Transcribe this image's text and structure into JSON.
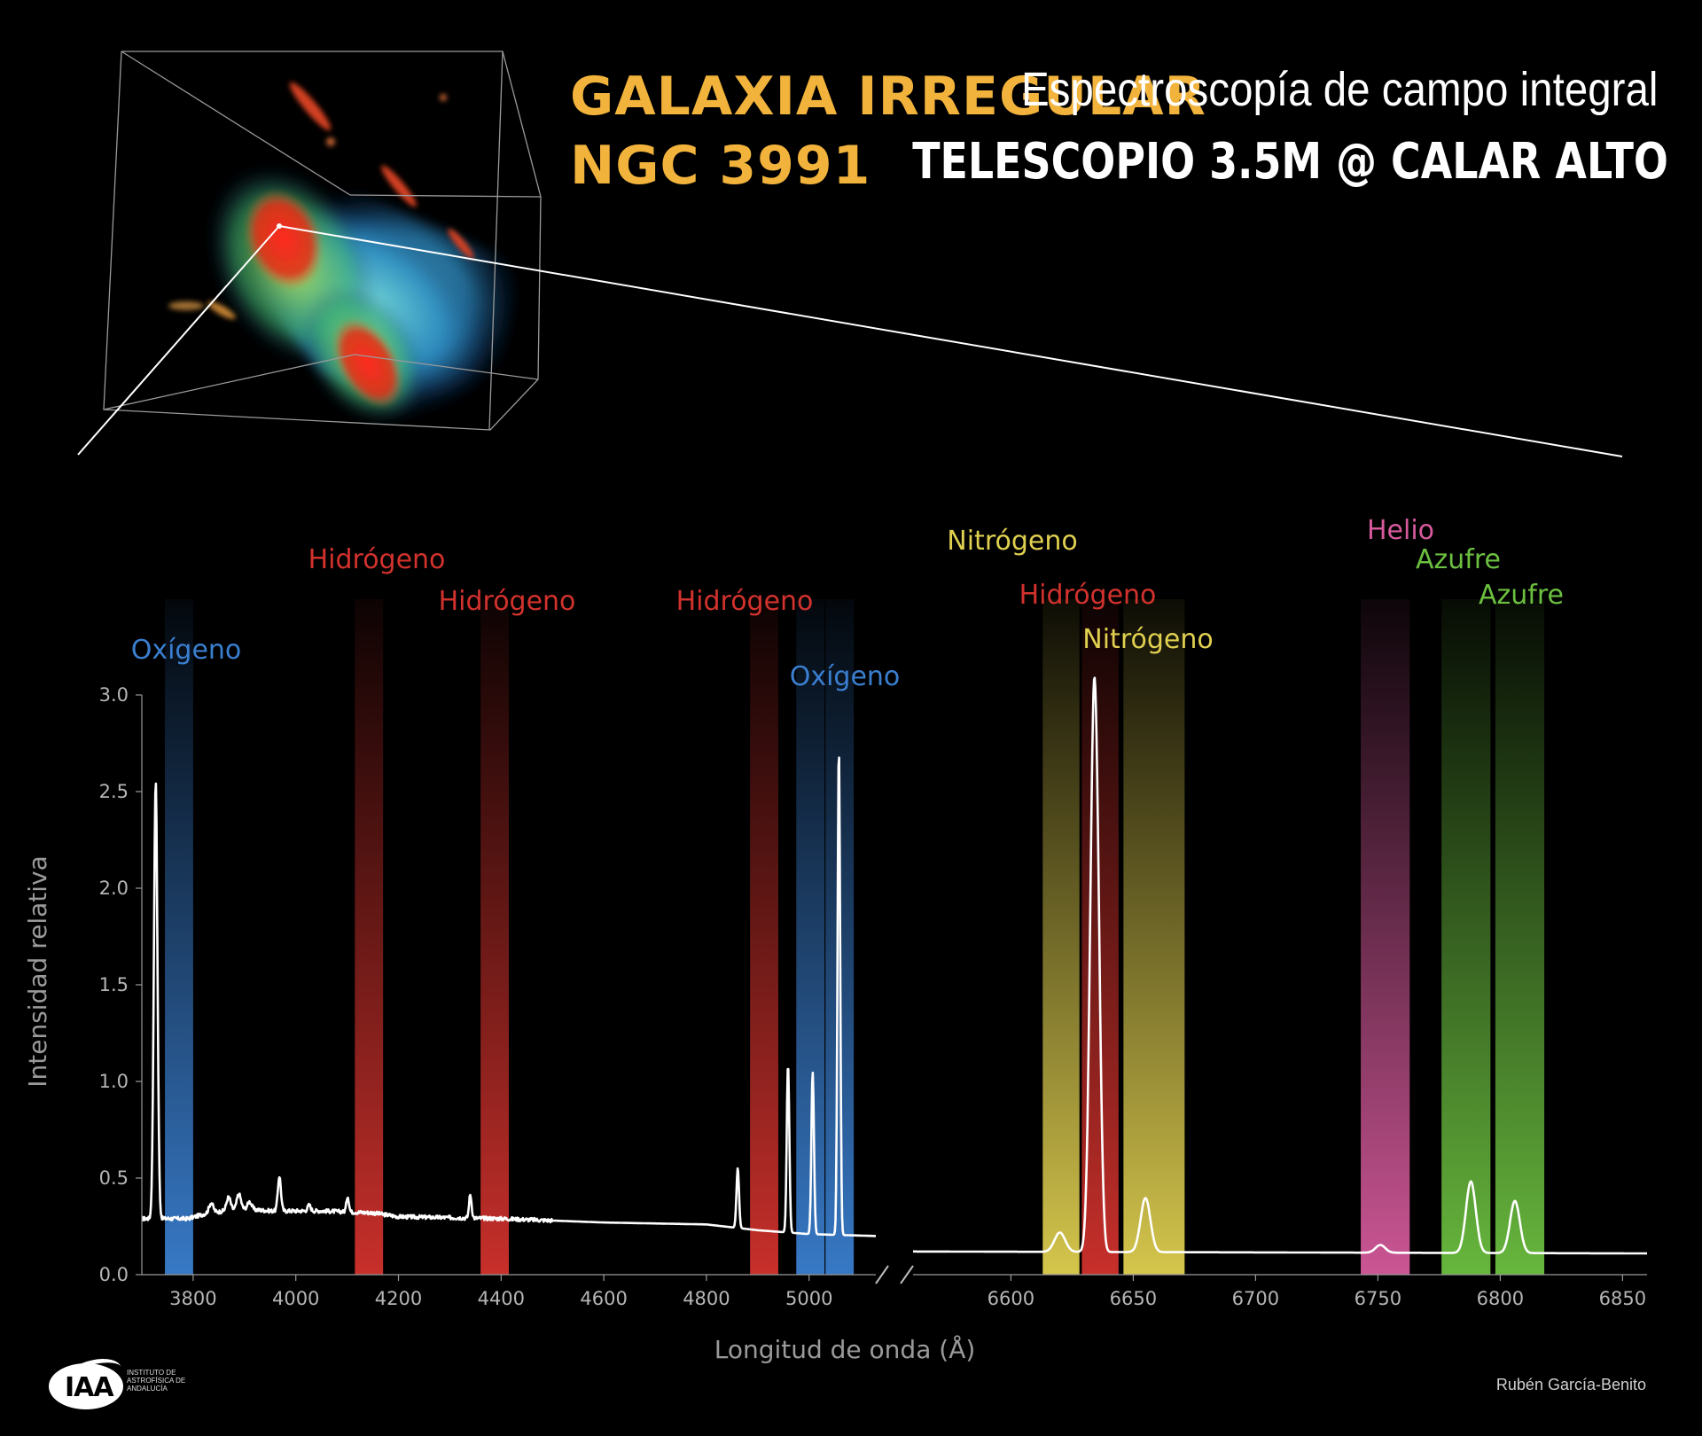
{
  "header": {
    "title_line1": "GALAXIA IRREGULAR",
    "title_line2": "NGC 3991",
    "subtitle_line1": "Espectroscopía de campo integral",
    "subtitle_line2": "TELESCOPIO 3.5M @ CALAR ALTO"
  },
  "credit": "Rubén García-Benito",
  "logo": {
    "text": "IAA",
    "institution": "INSTITUTO DE ASTROFÍSICA DE ANDALUCÍA"
  },
  "colors": {
    "title": "#f2b33c",
    "oxygen": "#3a7fd0",
    "hydrogen": "#d2322d",
    "nitrogen": "#e0d050",
    "helium": "#d65a9c",
    "sulfur": "#6cc040",
    "spectrum": "#ffffff"
  },
  "chart_data": {
    "type": "line",
    "xlabel": "Longitud de onda (Å)",
    "ylabel": "Intensidad relativa",
    "ylim": [
      0.0,
      3.0
    ],
    "yticks": [
      "0.0",
      "0.5",
      "1.0",
      "1.5",
      "2.0",
      "2.5",
      "3.0"
    ],
    "panels": [
      {
        "xlim": [
          3700,
          5130
        ],
        "xticks": [
          "3800",
          "4000",
          "4200",
          "4400",
          "4600",
          "4800",
          "5000"
        ],
        "bands": [
          {
            "element": "Oxígeno",
            "color": "oxygen",
            "x0": 3745,
            "x1": 3800
          },
          {
            "element": "Hidrógeno",
            "color": "hydrogen",
            "x0": 4115,
            "x1": 4170
          },
          {
            "element": "Hidrógeno",
            "color": "hydrogen",
            "x0": 4360,
            "x1": 4415
          },
          {
            "element": "Hidrógeno",
            "color": "hydrogen",
            "x0": 4885,
            "x1": 4940
          },
          {
            "element": "Oxígeno",
            "color": "oxygen",
            "x0": 4975,
            "x1": 5030
          },
          {
            "element": "Oxígeno",
            "color": "oxygen",
            "x0": 5032,
            "x1": 5087
          }
        ],
        "continuum": [
          [
            3700,
            0.29
          ],
          [
            3790,
            0.29
          ],
          [
            3830,
            0.32
          ],
          [
            3900,
            0.34
          ],
          [
            3950,
            0.33
          ],
          [
            4050,
            0.33
          ],
          [
            4150,
            0.32
          ],
          [
            4200,
            0.3
          ],
          [
            4400,
            0.29
          ],
          [
            4600,
            0.27
          ],
          [
            4800,
            0.26
          ],
          [
            4900,
            0.23
          ],
          [
            5000,
            0.21
          ],
          [
            5130,
            0.2
          ]
        ],
        "lines": [
          {
            "x": 3727,
            "peak": 2.26,
            "width": 3.5
          },
          {
            "x": 3835,
            "peak": 0.05,
            "width": 4
          },
          {
            "x": 3869,
            "peak": 0.07,
            "width": 4
          },
          {
            "x": 3889,
            "peak": 0.08,
            "width": 4
          },
          {
            "x": 3910,
            "peak": 0.04,
            "width": 4
          },
          {
            "x": 3968,
            "peak": 0.18,
            "width": 3
          },
          {
            "x": 4026,
            "peak": 0.03,
            "width": 3
          },
          {
            "x": 4101,
            "peak": 0.08,
            "width": 2.5
          },
          {
            "x": 4340,
            "peak": 0.12,
            "width": 2.5
          },
          {
            "x": 4861,
            "peak": 0.31,
            "width": 2.5
          },
          {
            "x": 4959,
            "peak": 0.87,
            "width": 2.5
          },
          {
            "x": 5007,
            "peak": 0.84,
            "width": 2.5
          },
          {
            "x": 5058,
            "peak": 2.52,
            "width": 2.5
          }
        ]
      },
      {
        "xlim": [
          6560,
          6860
        ],
        "xticks": [
          "6600",
          "6650",
          "6700",
          "6750",
          "6800",
          "6850"
        ],
        "bands": [
          {
            "element": "Nitrógeno",
            "color": "nitrogen",
            "x0": 6613,
            "x1": 6628
          },
          {
            "element": "Hidrógeno",
            "color": "hydrogen",
            "x0": 6629,
            "x1": 6644
          },
          {
            "element": "Nitrógeno",
            "color": "nitrogen",
            "x0": 6646,
            "x1": 6671
          },
          {
            "element": "Helio",
            "color": "helium",
            "x0": 6743,
            "x1": 6763
          },
          {
            "element": "Azufre",
            "color": "sulfur",
            "x0": 6776,
            "x1": 6796
          },
          {
            "element": "Azufre",
            "color": "sulfur",
            "x0": 6798,
            "x1": 6818
          }
        ],
        "continuum": [
          [
            6560,
            0.12
          ],
          [
            6860,
            0.11
          ]
        ],
        "lines": [
          {
            "x": 6620,
            "peak": 0.1,
            "width": 2.2
          },
          {
            "x": 6634,
            "peak": 2.85,
            "width": 1.6
          },
          {
            "x": 6636,
            "peak": 0.45,
            "width": 1.2
          },
          {
            "x": 6655,
            "peak": 0.28,
            "width": 2.0
          },
          {
            "x": 6751,
            "peak": 0.04,
            "width": 2.0
          },
          {
            "x": 6788,
            "peak": 0.37,
            "width": 2.0
          },
          {
            "x": 6806,
            "peak": 0.27,
            "width": 2.0
          }
        ]
      }
    ],
    "annotations": [
      {
        "text": "Oxígeno",
        "color": "oxygen"
      },
      {
        "text": "Hidrógeno",
        "color": "hydrogen"
      },
      {
        "text": "Hidrógeno",
        "color": "hydrogen"
      },
      {
        "text": "Hidrógeno",
        "color": "hydrogen"
      },
      {
        "text": "Oxígeno",
        "color": "oxygen"
      },
      {
        "text": "Nitrógeno",
        "color": "nitrogen"
      },
      {
        "text": "Hidrógeno",
        "color": "hydrogen"
      },
      {
        "text": "Nitrógeno",
        "color": "nitrogen"
      },
      {
        "text": "Helio",
        "color": "helium"
      },
      {
        "text": "Azufre",
        "color": "sulfur"
      },
      {
        "text": "Azufre",
        "color": "sulfur"
      }
    ]
  }
}
